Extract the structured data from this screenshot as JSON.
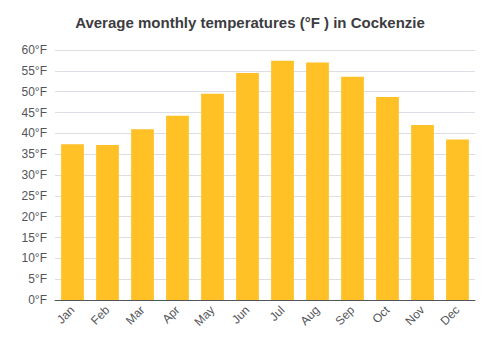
{
  "chart_data": {
    "type": "bar",
    "title": "Average monthly temperatures (°F ) in Cockenzie",
    "categories": [
      "Jan",
      "Feb",
      "Mar",
      "Apr",
      "May",
      "Jun",
      "Jul",
      "Aug",
      "Sep",
      "Oct",
      "Nov",
      "Dec"
    ],
    "values": [
      37.4,
      37.2,
      41.0,
      44.2,
      49.5,
      54.5,
      57.4,
      57.0,
      53.6,
      48.7,
      42.0,
      38.5
    ],
    "color": "#FFC125",
    "ylim": [
      0,
      60
    ],
    "yticks": [
      {
        "value": 0,
        "label": "0°F"
      },
      {
        "value": 5,
        "label": "5°F"
      },
      {
        "value": 10,
        "label": "10°F"
      },
      {
        "value": 15,
        "label": "15°F"
      },
      {
        "value": 20,
        "label": "20°F"
      },
      {
        "value": 25,
        "label": "25°F"
      },
      {
        "value": 30,
        "label": "30°F"
      },
      {
        "value": 35,
        "label": "35°F"
      },
      {
        "value": 40,
        "label": "40°F"
      },
      {
        "value": 45,
        "label": "45°F"
      },
      {
        "value": 50,
        "label": "50°F"
      },
      {
        "value": 55,
        "label": "55°F"
      },
      {
        "value": 60,
        "label": "60°F"
      }
    ],
    "grid": true
  }
}
